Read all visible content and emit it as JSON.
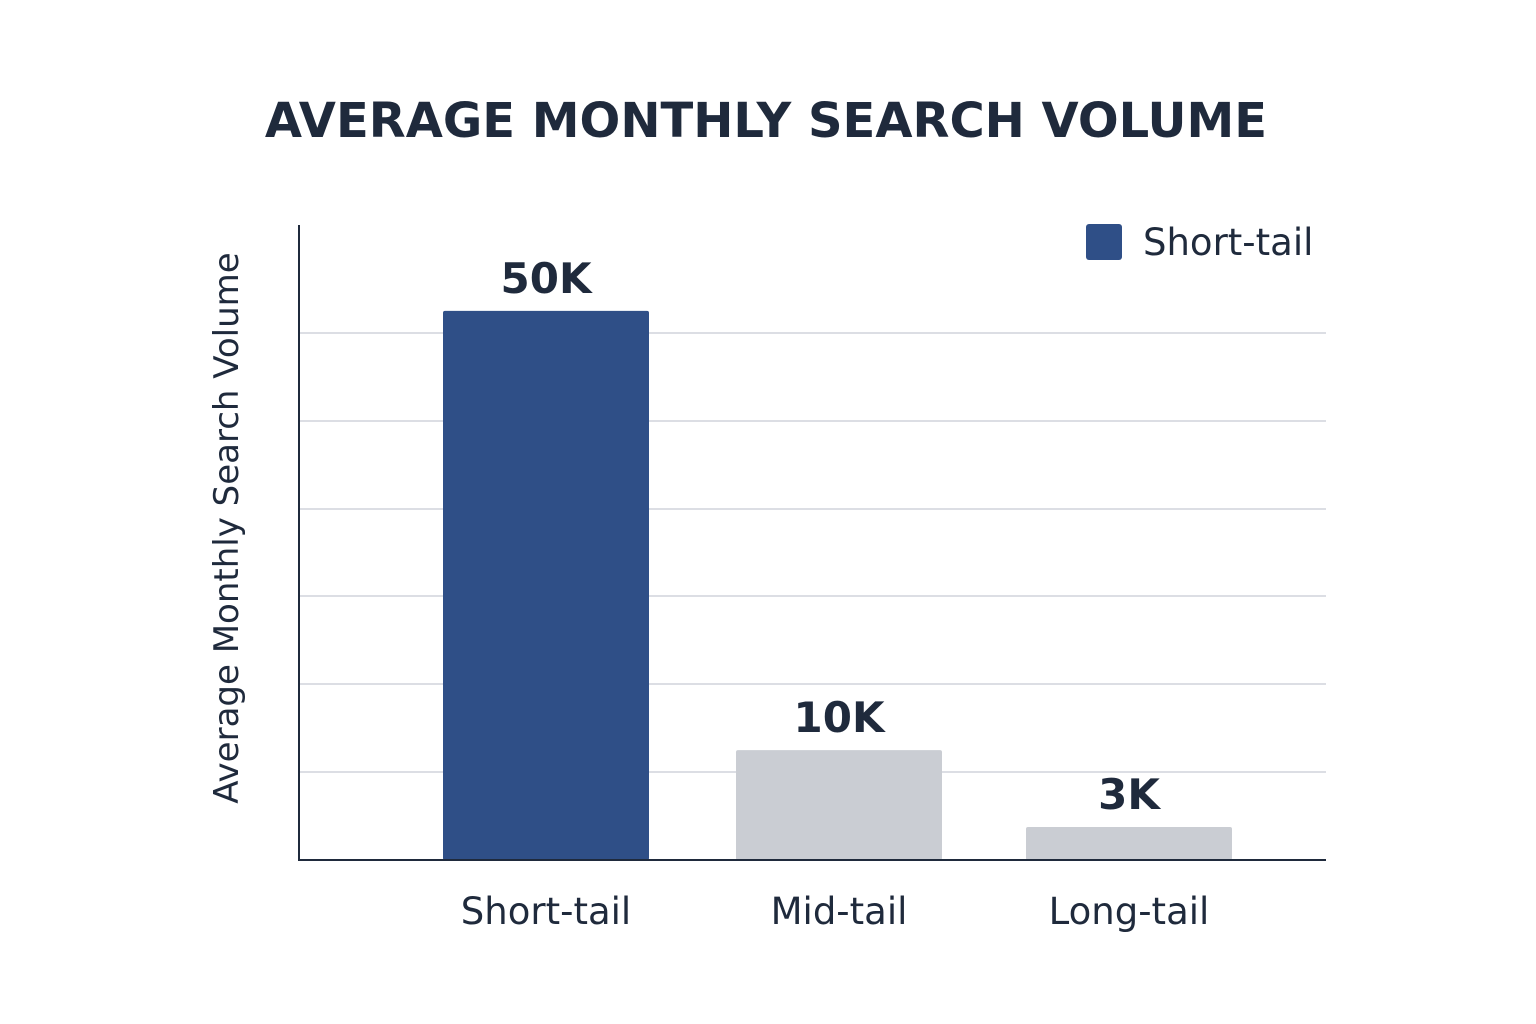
{
  "chart_data": {
    "type": "bar",
    "title": "AVERAGE MONTHLY SEARCH VOLUME",
    "ylabel": "Average Monthly Search Volume",
    "xlabel": "",
    "categories": [
      "Short-tail",
      "Mid-tail",
      "Long-tail"
    ],
    "values": [
      50000,
      10000,
      3000
    ],
    "data_labels": [
      "50K",
      "10K",
      "3K"
    ],
    "ylim": [
      0,
      56000
    ],
    "grid": true,
    "legend": {
      "placement": "top-right",
      "entries": [
        {
          "label": "Short-tail",
          "color": "#2f4f87"
        }
      ]
    },
    "colors": {
      "highlight": "#2f4f87",
      "muted": "#cacdd3",
      "grid": "#dcdee4",
      "axis": "#1f2a3c"
    },
    "bar_colors": [
      "#2f4f87",
      "#cacdd3",
      "#cacdd3"
    ]
  }
}
